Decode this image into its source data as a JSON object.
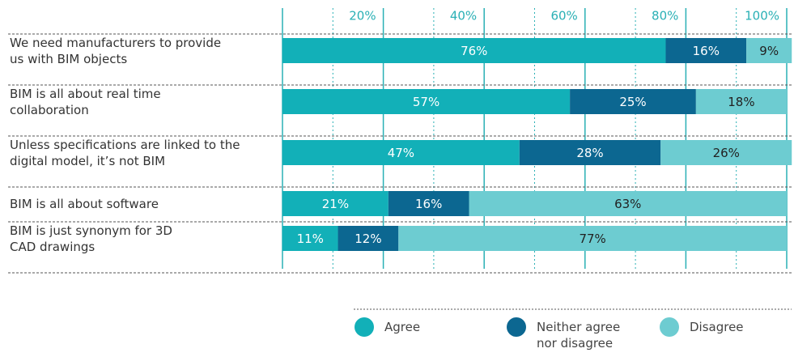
{
  "chart_data": {
    "type": "stacked-bar-horizontal",
    "categories": [
      "We need manufacturers to provide\nus with BIM objects",
      "BIM is all about real time\ncollaboration",
      "Unless specifications are linked to the\ndigital model, it’s not BIM",
      "BIM is all about software",
      "BIM is just synonym for 3D\nCAD drawings"
    ],
    "series": [
      {
        "name": "Agree",
        "color": "#12b0b8",
        "values": [
          76,
          57,
          47,
          21,
          11
        ],
        "value_labels": [
          "76%",
          "57%",
          "47%",
          "21%",
          "11%"
        ]
      },
      {
        "name": "Neither agree\nnor disagree",
        "color": "#0c6791",
        "values": [
          16,
          25,
          28,
          16,
          12
        ],
        "value_labels": [
          "16%",
          "25%",
          "28%",
          "16%",
          "12%"
        ]
      },
      {
        "name": "Disagree",
        "color": "#6dccd1",
        "values": [
          9,
          18,
          26,
          63,
          77
        ],
        "value_labels": [
          "9%",
          "18%",
          "26%",
          "63%",
          "77%"
        ]
      }
    ],
    "xlim": [
      0,
      100
    ],
    "xticks": [
      {
        "value": 20,
        "label": "20%"
      },
      {
        "value": 40,
        "label": "40%"
      },
      {
        "value": 60,
        "label": "60%"
      },
      {
        "value": 80,
        "label": "80%"
      },
      {
        "value": 100,
        "label": "100%"
      }
    ],
    "minor_xticks": [
      10,
      30,
      50,
      70,
      90
    ],
    "grid": true
  }
}
